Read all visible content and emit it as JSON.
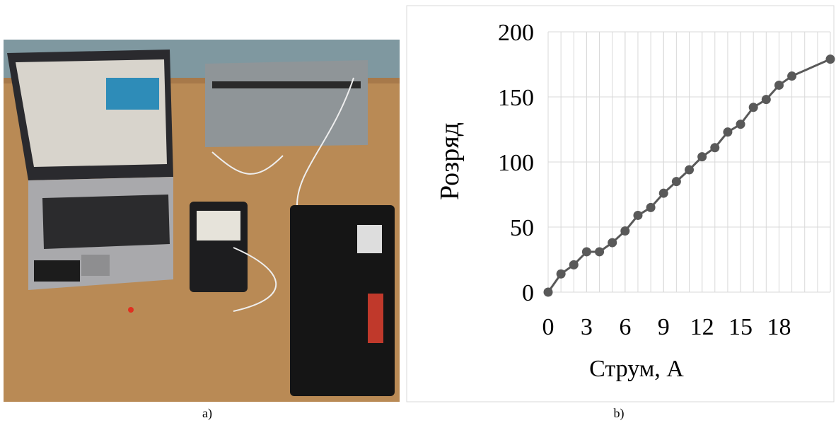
{
  "panel_labels": [
    "a)",
    "b)"
  ],
  "chart_data": {
    "type": "line",
    "x_label": "Струм, A",
    "y_label": "Розряд",
    "x": [
      0,
      1,
      2,
      3,
      4,
      5,
      6,
      7,
      8,
      9,
      10,
      11,
      12,
      13,
      14,
      15,
      16,
      17,
      18,
      19,
      22
    ],
    "values": [
      0,
      14,
      21,
      31,
      31,
      38,
      47,
      59,
      65,
      76,
      85,
      94,
      104,
      111,
      123,
      129,
      142,
      148,
      159,
      166,
      179
    ],
    "color": "#595959",
    "xlim": [
      0,
      22
    ],
    "ylim": [
      0,
      200
    ],
    "xticks": [
      0,
      3,
      6,
      9,
      12,
      15,
      18
    ],
    "yticks": [
      0,
      50,
      100,
      150,
      200
    ],
    "grid": true
  }
}
